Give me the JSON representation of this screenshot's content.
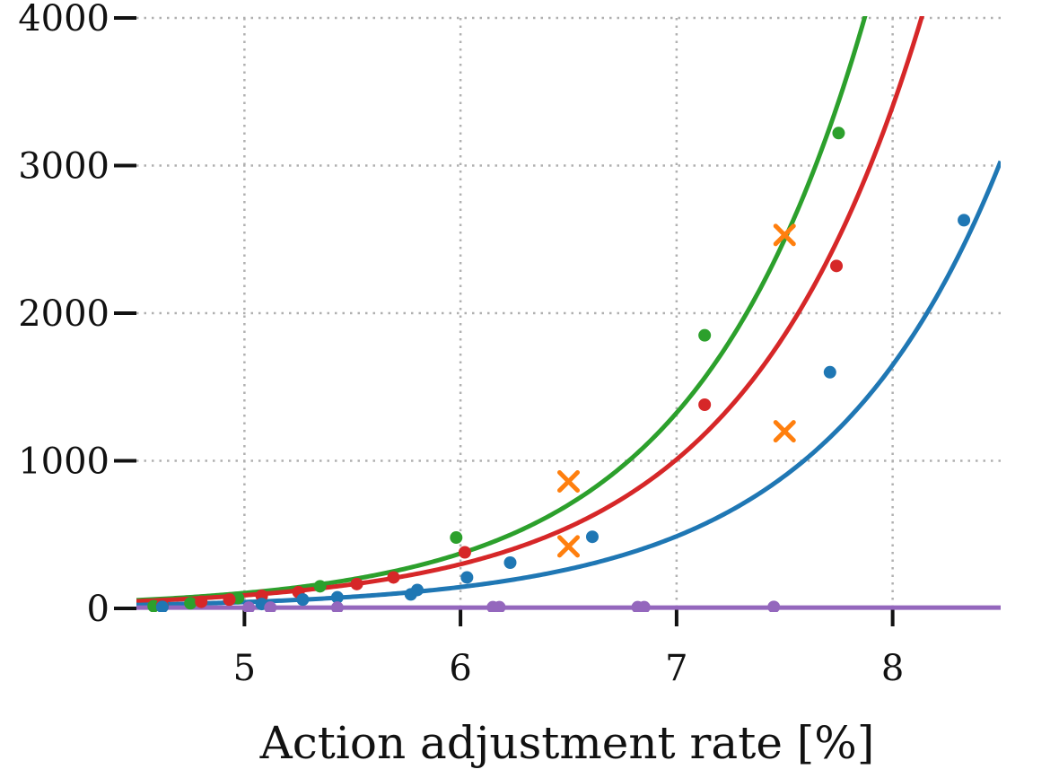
{
  "chart_data": {
    "type": "scatter",
    "title": "",
    "xlabel": "Action adjustment rate [%]",
    "ylabel": "",
    "xlim": [
      4.5,
      8.5
    ],
    "ylim": [
      0,
      4000
    ],
    "xticks": [
      5,
      6,
      7,
      8
    ],
    "yticks": [
      0,
      1000,
      2000,
      3000,
      4000
    ],
    "x_tick_labels": [
      "5",
      "6",
      "7",
      "8"
    ],
    "y_tick_labels": [
      "0",
      "1000",
      "2000",
      "3000",
      "4000"
    ],
    "grid": true,
    "grid_style": "dotted",
    "series": [
      {
        "color": "#2ca02c",
        "points": [
          [
            4.58,
            15
          ],
          [
            4.75,
            35
          ],
          [
            4.97,
            70
          ],
          [
            5.35,
            150
          ],
          [
            5.98,
            480
          ],
          [
            7.13,
            1850
          ],
          [
            7.75,
            3220
          ]
        ],
        "fit": {
          "a": 0.1825,
          "b": 1.27
        }
      },
      {
        "color": "#d62728",
        "points": [
          [
            4.62,
            20
          ],
          [
            4.8,
            45
          ],
          [
            4.93,
            60
          ],
          [
            5.08,
            85
          ],
          [
            5.25,
            110
          ],
          [
            5.52,
            165
          ],
          [
            5.69,
            210
          ],
          [
            6.02,
            380
          ],
          [
            7.13,
            1380
          ],
          [
            7.74,
            2320
          ]
        ],
        "fit": {
          "a": 0.2043,
          "b": 1.215
        }
      },
      {
        "color": "#1f77b4",
        "points": [
          [
            4.62,
            10
          ],
          [
            5.08,
            30
          ],
          [
            5.27,
            60
          ],
          [
            5.43,
            75
          ],
          [
            5.77,
            95
          ],
          [
            5.8,
            125
          ],
          [
            6.03,
            210
          ],
          [
            6.23,
            310
          ],
          [
            6.61,
            485
          ],
          [
            7.71,
            1600
          ],
          [
            8.33,
            2630
          ]
        ],
        "fit": {
          "a": 0.09786,
          "b": 1.2165
        }
      },
      {
        "color": "#9467bd",
        "points": [
          [
            5.02,
            5
          ],
          [
            5.12,
            5
          ],
          [
            5.43,
            5
          ],
          [
            6.15,
            8
          ],
          [
            6.18,
            8
          ],
          [
            6.82,
            8
          ],
          [
            6.85,
            8
          ],
          [
            7.45,
            10
          ]
        ],
        "fit": {
          "a": 5,
          "b": 0
        }
      }
    ],
    "markers": {
      "color": "#ff7f0e",
      "shape": "x",
      "points": [
        [
          6.5,
          860
        ],
        [
          7.5,
          2530
        ],
        [
          6.5,
          420
        ],
        [
          7.5,
          1200
        ]
      ]
    }
  }
}
